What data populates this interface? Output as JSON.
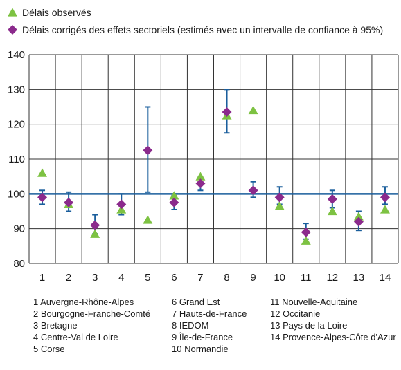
{
  "chart_data": {
    "type": "scatter",
    "categories": [
      "1",
      "2",
      "3",
      "4",
      "5",
      "6",
      "7",
      "8",
      "9",
      "10",
      "11",
      "12",
      "13",
      "14"
    ],
    "series": [
      {
        "name": "Délais observés",
        "marker": "triangle",
        "color": "#7dc242",
        "values": [
          106,
          97,
          88.5,
          95.5,
          92.5,
          99.5,
          105,
          122.5,
          124,
          96.5,
          86.5,
          95,
          93.5,
          95.5
        ]
      },
      {
        "name": "Délais corrigés des effets sectoriels (estimés avec un intervalle de confiance à 95%)",
        "marker": "diamond",
        "color": "#8b2a8c",
        "values": [
          99,
          97.5,
          91,
          97,
          112.5,
          97.5,
          103,
          123.5,
          101,
          99,
          89,
          98.5,
          92,
          99
        ],
        "ci_low": [
          97,
          95,
          88.5,
          94,
          100.5,
          95.5,
          101,
          117.5,
          99,
          97,
          87,
          96,
          89.5,
          97
        ],
        "ci_high": [
          101,
          100.5,
          94,
          100,
          125,
          99.5,
          105,
          130,
          103.5,
          102,
          91.5,
          101,
          95,
          102
        ]
      }
    ],
    "reference_line": {
      "value": 100,
      "color": "#1a5e9c"
    },
    "ylim": [
      80,
      140
    ],
    "yticks": [
      80,
      90,
      100,
      110,
      120,
      130,
      140
    ],
    "grid": true,
    "legend_position": "top-left",
    "region_key": [
      {
        "num": "1",
        "name": "Auvergne-Rhône-Alpes"
      },
      {
        "num": "2",
        "name": "Bourgogne-Franche-Comté"
      },
      {
        "num": "3",
        "name": "Bretagne"
      },
      {
        "num": "4",
        "name": "Centre-Val de Loire"
      },
      {
        "num": "5",
        "name": "Corse"
      },
      {
        "num": "6",
        "name": "Grand Est"
      },
      {
        "num": "7",
        "name": "Hauts-de-France"
      },
      {
        "num": "8",
        "name": "IEDOM"
      },
      {
        "num": "9",
        "name": "Île-de-France"
      },
      {
        "num": "10",
        "name": "Normandie"
      },
      {
        "num": "11",
        "name": "Nouvelle-Aquitaine"
      },
      {
        "num": "12",
        "name": "Occitanie"
      },
      {
        "num": "13",
        "name": "Pays de la Loire"
      },
      {
        "num": "14",
        "name": "Provence-Alpes-Côte d'Azur"
      }
    ],
    "colors": {
      "grid": "#333333",
      "error_bar": "#1a5e9c"
    }
  }
}
